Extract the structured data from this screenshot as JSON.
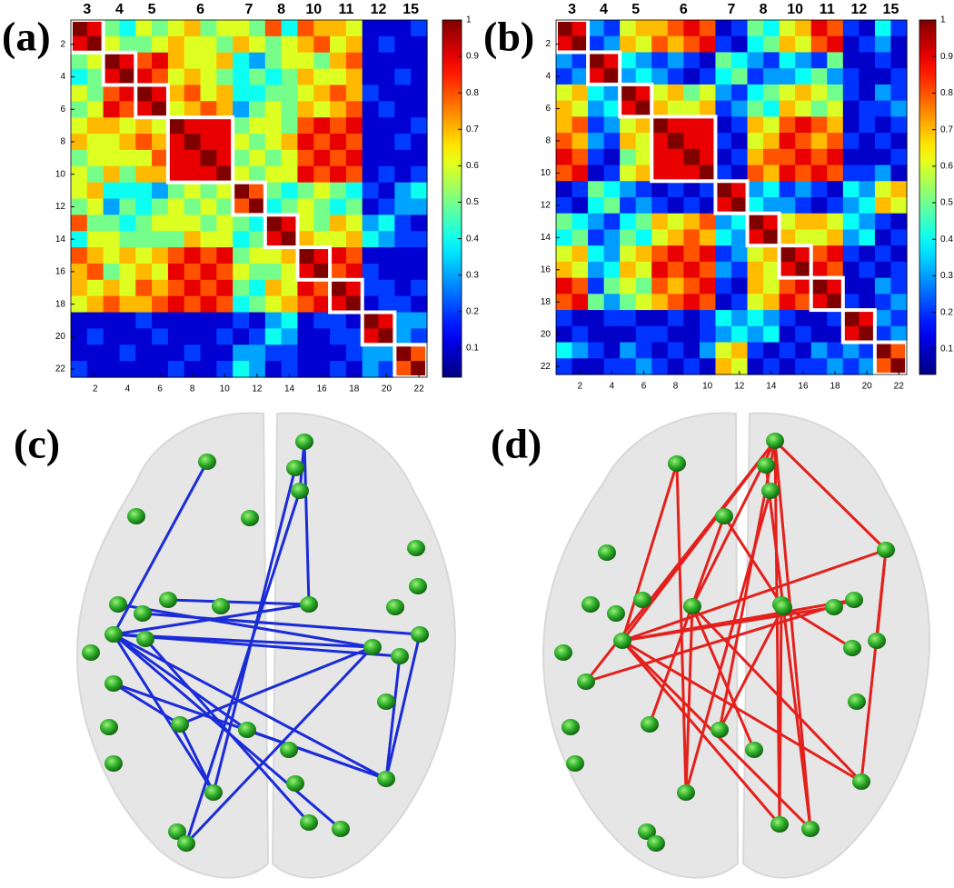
{
  "chart_data": [
    {
      "type": "heatmap",
      "panel_label": "(a)",
      "modules": [
        {
          "label": "3",
          "cells": [
            1,
            2
          ]
        },
        {
          "label": "4",
          "cells": [
            3,
            4
          ]
        },
        {
          "label": "5",
          "cells": [
            5,
            6
          ]
        },
        {
          "label": "6",
          "cells": [
            7,
            10
          ]
        },
        {
          "label": "7",
          "cells": [
            11,
            12
          ]
        },
        {
          "label": "8",
          "cells": [
            13,
            14
          ]
        },
        {
          "label": "10",
          "cells": [
            15,
            16
          ]
        },
        {
          "label": "11",
          "cells": [
            17,
            18
          ]
        },
        {
          "label": "12",
          "cells": [
            19,
            20
          ]
        },
        {
          "label": "15",
          "cells": [
            21,
            22
          ]
        }
      ],
      "xlim": [
        0.5,
        22.5
      ],
      "ylim": [
        0.5,
        22.5
      ],
      "xticks": [
        2,
        4,
        6,
        8,
        10,
        12,
        14,
        16,
        18,
        20,
        22
      ],
      "yticks": [
        2,
        4,
        6,
        8,
        10,
        12,
        14,
        16,
        18,
        20,
        22
      ],
      "colorbar": {
        "lim": [
          0.02,
          1
        ],
        "ticks": [
          0.1,
          0.2,
          0.3,
          0.4,
          0.5,
          0.6,
          0.7,
          0.8,
          0.9,
          1
        ]
      },
      "values": [
        [
          1,
          0.9,
          0.5,
          0.4,
          0.6,
          0.5,
          0.6,
          0.7,
          0.5,
          0.6,
          0.6,
          0.5,
          0.8,
          0.4,
          0.8,
          0.7,
          0.7,
          0.6,
          0.1,
          0.1,
          0.1,
          0.2
        ],
        [
          0.9,
          1,
          0.6,
          0.5,
          0.5,
          0.6,
          0.7,
          0.6,
          0.6,
          0.5,
          0.7,
          0.6,
          0.5,
          0.6,
          0.7,
          0.8,
          0.6,
          0.7,
          0.1,
          0.2,
          0.1,
          0.1
        ],
        [
          0.5,
          0.6,
          1,
          0.9,
          0.8,
          0.9,
          0.7,
          0.6,
          0.6,
          0.7,
          0.4,
          0.3,
          0.5,
          0.6,
          0.6,
          0.5,
          0.7,
          0.8,
          0.1,
          0.1,
          0.1,
          0.1
        ],
        [
          0.4,
          0.5,
          0.9,
          1,
          0.9,
          0.8,
          0.6,
          0.7,
          0.6,
          0.5,
          0.4,
          0.5,
          0.4,
          0.5,
          0.7,
          0.6,
          0.6,
          0.7,
          0.1,
          0.1,
          0.2,
          0.1
        ],
        [
          0.6,
          0.5,
          0.8,
          0.9,
          1,
          0.9,
          0.7,
          0.8,
          0.6,
          0.7,
          0.4,
          0.4,
          0.5,
          0.5,
          0.6,
          0.7,
          0.8,
          0.7,
          0.2,
          0.1,
          0.1,
          0.1
        ],
        [
          0.5,
          0.6,
          0.9,
          0.8,
          0.9,
          1,
          0.6,
          0.7,
          0.8,
          0.7,
          0.3,
          0.5,
          0.6,
          0.5,
          0.7,
          0.6,
          0.7,
          0.8,
          0.1,
          0.2,
          0.1,
          0.1
        ],
        [
          0.6,
          0.7,
          0.7,
          0.6,
          0.7,
          0.6,
          1,
          0.9,
          0.9,
          0.9,
          0.5,
          0.6,
          0.6,
          0.5,
          0.8,
          0.9,
          0.8,
          0.9,
          0.1,
          0.1,
          0.1,
          0.2
        ],
        [
          0.7,
          0.6,
          0.6,
          0.7,
          0.8,
          0.7,
          0.9,
          1,
          0.9,
          0.9,
          0.6,
          0.5,
          0.6,
          0.7,
          0.9,
          0.8,
          0.9,
          0.8,
          0.1,
          0.1,
          0.2,
          0.1
        ],
        [
          0.5,
          0.6,
          0.6,
          0.6,
          0.6,
          0.8,
          0.9,
          0.9,
          1,
          0.9,
          0.5,
          0.6,
          0.5,
          0.6,
          0.8,
          0.9,
          0.8,
          0.9,
          0.1,
          0.1,
          0.1,
          0.1
        ],
        [
          0.6,
          0.5,
          0.7,
          0.5,
          0.7,
          0.7,
          0.9,
          0.9,
          0.9,
          1,
          0.6,
          0.5,
          0.6,
          0.6,
          0.9,
          0.8,
          0.9,
          0.8,
          0.1,
          0.2,
          0.1,
          0.2
        ],
        [
          0.6,
          0.7,
          0.4,
          0.4,
          0.4,
          0.3,
          0.5,
          0.6,
          0.5,
          0.6,
          1,
          0.8,
          0.5,
          0.4,
          0.5,
          0.6,
          0.5,
          0.4,
          0.2,
          0.1,
          0.3,
          0.4
        ],
        [
          0.5,
          0.6,
          0.3,
          0.5,
          0.4,
          0.5,
          0.6,
          0.5,
          0.6,
          0.5,
          0.8,
          1,
          0.4,
          0.5,
          0.6,
          0.5,
          0.4,
          0.5,
          0.1,
          0.2,
          0.3,
          0.3
        ],
        [
          0.8,
          0.5,
          0.5,
          0.4,
          0.5,
          0.6,
          0.6,
          0.6,
          0.5,
          0.6,
          0.5,
          0.4,
          1,
          0.9,
          0.6,
          0.5,
          0.7,
          0.6,
          0.3,
          0.4,
          0.2,
          0.1
        ],
        [
          0.4,
          0.6,
          0.6,
          0.5,
          0.5,
          0.5,
          0.5,
          0.7,
          0.6,
          0.6,
          0.4,
          0.5,
          0.9,
          1,
          0.7,
          0.6,
          0.6,
          0.7,
          0.4,
          0.3,
          0.2,
          0.2
        ],
        [
          0.8,
          0.7,
          0.6,
          0.7,
          0.6,
          0.7,
          0.8,
          0.9,
          0.8,
          0.9,
          0.5,
          0.6,
          0.6,
          0.7,
          1,
          0.9,
          0.9,
          0.8,
          0.1,
          0.1,
          0.1,
          0.1
        ],
        [
          0.7,
          0.8,
          0.5,
          0.6,
          0.7,
          0.6,
          0.9,
          0.8,
          0.9,
          0.8,
          0.6,
          0.5,
          0.5,
          0.6,
          0.9,
          1,
          0.8,
          0.9,
          0.2,
          0.1,
          0.1,
          0.1
        ],
        [
          0.7,
          0.6,
          0.7,
          0.6,
          0.8,
          0.7,
          0.8,
          0.9,
          0.8,
          0.9,
          0.5,
          0.4,
          0.7,
          0.6,
          0.9,
          0.8,
          1,
          0.9,
          0.2,
          0.2,
          0.1,
          0.2
        ],
        [
          0.6,
          0.7,
          0.8,
          0.7,
          0.7,
          0.8,
          0.9,
          0.8,
          0.9,
          0.8,
          0.4,
          0.5,
          0.6,
          0.7,
          0.8,
          0.9,
          0.9,
          1,
          0.1,
          0.2,
          0.2,
          0.1
        ],
        [
          0.1,
          0.1,
          0.1,
          0.1,
          0.2,
          0.1,
          0.1,
          0.1,
          0.1,
          0.1,
          0.2,
          0.1,
          0.3,
          0.4,
          0.1,
          0.2,
          0.2,
          0.1,
          1,
          0.9,
          0.3,
          0.3
        ],
        [
          0.1,
          0.2,
          0.1,
          0.1,
          0.1,
          0.2,
          0.1,
          0.1,
          0.1,
          0.2,
          0.1,
          0.2,
          0.4,
          0.3,
          0.1,
          0.1,
          0.2,
          0.2,
          0.9,
          1,
          0.3,
          0.2
        ],
        [
          0.1,
          0.1,
          0.1,
          0.2,
          0.1,
          0.1,
          0.1,
          0.2,
          0.1,
          0.1,
          0.3,
          0.3,
          0.2,
          0.2,
          0.1,
          0.1,
          0.1,
          0.2,
          0.3,
          0.3,
          1,
          0.8
        ],
        [
          0.2,
          0.1,
          0.1,
          0.1,
          0.1,
          0.1,
          0.2,
          0.1,
          0.1,
          0.2,
          0.4,
          0.3,
          0.1,
          0.2,
          0.1,
          0.1,
          0.2,
          0.1,
          0.3,
          0.2,
          0.8,
          1
        ]
      ]
    },
    {
      "type": "heatmap",
      "panel_label": "(b)",
      "modules": [
        {
          "label": "3",
          "cells": [
            1,
            2
          ]
        },
        {
          "label": "4",
          "cells": [
            3,
            4
          ]
        },
        {
          "label": "5",
          "cells": [
            5,
            6
          ]
        },
        {
          "label": "6",
          "cells": [
            7,
            10
          ]
        },
        {
          "label": "7",
          "cells": [
            11,
            12
          ]
        },
        {
          "label": "8",
          "cells": [
            13,
            14
          ]
        },
        {
          "label": "10",
          "cells": [
            15,
            16
          ]
        },
        {
          "label": "11",
          "cells": [
            17,
            18
          ]
        },
        {
          "label": "12",
          "cells": [
            19,
            20
          ]
        },
        {
          "label": "15",
          "cells": [
            21,
            22
          ]
        }
      ],
      "xlim": [
        0.5,
        22.5
      ],
      "ylim": [
        0.5,
        22.5
      ],
      "xticks": [
        2,
        4,
        6,
        8,
        10,
        12,
        14,
        16,
        18,
        20,
        22
      ],
      "yticks": [
        2,
        4,
        6,
        8,
        10,
        12,
        14,
        16,
        18,
        20,
        22
      ],
      "colorbar": {
        "lim": [
          0.03,
          1
        ],
        "ticks": [
          0.1,
          0.2,
          0.3,
          0.4,
          0.5,
          0.6,
          0.7,
          0.8,
          0.9,
          1
        ]
      },
      "values": [
        [
          1,
          0.9,
          0.3,
          0.2,
          0.6,
          0.7,
          0.7,
          0.8,
          0.9,
          0.8,
          0.1,
          0.2,
          0.5,
          0.4,
          0.6,
          0.7,
          0.9,
          0.8,
          0.2,
          0.1,
          0.4,
          0.2
        ],
        [
          0.9,
          1,
          0.2,
          0.3,
          0.7,
          0.6,
          0.8,
          0.7,
          0.8,
          0.9,
          0.2,
          0.1,
          0.4,
          0.5,
          0.7,
          0.6,
          0.8,
          0.9,
          0.1,
          0.2,
          0.3,
          0.1
        ],
        [
          0.3,
          0.2,
          1,
          0.9,
          0.4,
          0.3,
          0.2,
          0.3,
          0.2,
          0.1,
          0.5,
          0.4,
          0.3,
          0.2,
          0.4,
          0.3,
          0.2,
          0.5,
          0.1,
          0.1,
          0.2,
          0.1
        ],
        [
          0.2,
          0.3,
          0.9,
          1,
          0.3,
          0.4,
          0.3,
          0.2,
          0.1,
          0.2,
          0.4,
          0.5,
          0.2,
          0.3,
          0.3,
          0.4,
          0.5,
          0.3,
          0.2,
          0.1,
          0.1,
          0.2
        ],
        [
          0.6,
          0.7,
          0.4,
          0.3,
          1,
          0.9,
          0.6,
          0.7,
          0.5,
          0.6,
          0.3,
          0.2,
          0.4,
          0.5,
          0.6,
          0.7,
          0.6,
          0.5,
          0.2,
          0.1,
          0.3,
          0.2
        ],
        [
          0.7,
          0.6,
          0.3,
          0.4,
          0.9,
          1,
          0.7,
          0.6,
          0.6,
          0.7,
          0.2,
          0.3,
          0.5,
          0.4,
          0.7,
          0.6,
          0.5,
          0.6,
          0.1,
          0.2,
          0.2,
          0.3
        ],
        [
          0.7,
          0.8,
          0.2,
          0.3,
          0.6,
          0.7,
          1,
          0.9,
          0.9,
          0.9,
          0.1,
          0.2,
          0.7,
          0.6,
          0.8,
          0.9,
          0.8,
          0.7,
          0.1,
          0.2,
          0.1,
          0.2
        ],
        [
          0.8,
          0.7,
          0.3,
          0.2,
          0.7,
          0.6,
          0.9,
          1,
          0.9,
          0.9,
          0.2,
          0.1,
          0.6,
          0.7,
          0.9,
          0.8,
          0.7,
          0.8,
          0.2,
          0.1,
          0.2,
          0.1
        ],
        [
          0.9,
          0.8,
          0.2,
          0.1,
          0.5,
          0.6,
          0.9,
          0.9,
          1,
          0.9,
          0.1,
          0.2,
          0.7,
          0.8,
          0.8,
          0.9,
          0.8,
          0.9,
          0.1,
          0.1,
          0.1,
          0.2
        ],
        [
          0.8,
          0.9,
          0.1,
          0.2,
          0.6,
          0.7,
          0.9,
          0.9,
          0.9,
          1,
          0.2,
          0.1,
          0.8,
          0.7,
          0.9,
          0.8,
          0.9,
          0.8,
          0.2,
          0.2,
          0.3,
          0.1
        ],
        [
          0.1,
          0.2,
          0.5,
          0.4,
          0.3,
          0.2,
          0.1,
          0.2,
          0.1,
          0.2,
          1,
          0.9,
          0.3,
          0.4,
          0.2,
          0.3,
          0.2,
          0.1,
          0.4,
          0.3,
          0.6,
          0.7
        ],
        [
          0.2,
          0.1,
          0.4,
          0.5,
          0.2,
          0.3,
          0.2,
          0.1,
          0.2,
          0.1,
          0.9,
          1,
          0.4,
          0.3,
          0.3,
          0.2,
          0.1,
          0.2,
          0.3,
          0.4,
          0.7,
          0.6
        ],
        [
          0.5,
          0.4,
          0.3,
          0.2,
          0.4,
          0.5,
          0.7,
          0.6,
          0.7,
          0.8,
          0.3,
          0.4,
          1,
          0.9,
          0.6,
          0.7,
          0.7,
          0.6,
          0.4,
          0.3,
          0.2,
          0.1
        ],
        [
          0.4,
          0.5,
          0.2,
          0.3,
          0.5,
          0.4,
          0.6,
          0.7,
          0.8,
          0.7,
          0.4,
          0.3,
          0.9,
          1,
          0.7,
          0.6,
          0.6,
          0.7,
          0.3,
          0.4,
          0.1,
          0.2
        ],
        [
          0.6,
          0.7,
          0.4,
          0.3,
          0.6,
          0.7,
          0.8,
          0.9,
          0.8,
          0.9,
          0.2,
          0.3,
          0.6,
          0.7,
          1,
          0.9,
          0.8,
          0.9,
          0.2,
          0.1,
          0.2,
          0.1
        ],
        [
          0.7,
          0.6,
          0.3,
          0.4,
          0.7,
          0.6,
          0.9,
          0.8,
          0.9,
          0.8,
          0.3,
          0.2,
          0.7,
          0.6,
          0.9,
          1,
          0.9,
          0.8,
          0.1,
          0.2,
          0.1,
          0.2
        ],
        [
          0.9,
          0.8,
          0.2,
          0.5,
          0.6,
          0.5,
          0.8,
          0.7,
          0.8,
          0.9,
          0.2,
          0.1,
          0.7,
          0.6,
          0.8,
          0.9,
          1,
          0.9,
          0.1,
          0.1,
          0.3,
          0.2
        ],
        [
          0.8,
          0.9,
          0.5,
          0.3,
          0.5,
          0.6,
          0.7,
          0.8,
          0.9,
          0.8,
          0.1,
          0.2,
          0.6,
          0.7,
          0.9,
          0.8,
          0.9,
          1,
          0.2,
          0.1,
          0.2,
          0.3
        ],
        [
          0.2,
          0.1,
          0.1,
          0.2,
          0.2,
          0.1,
          0.1,
          0.2,
          0.1,
          0.2,
          0.4,
          0.3,
          0.4,
          0.3,
          0.2,
          0.1,
          0.1,
          0.2,
          1,
          0.9,
          0.3,
          0.2
        ],
        [
          0.1,
          0.2,
          0.1,
          0.1,
          0.1,
          0.2,
          0.2,
          0.1,
          0.1,
          0.2,
          0.3,
          0.4,
          0.3,
          0.4,
          0.1,
          0.2,
          0.1,
          0.1,
          0.9,
          1,
          0.2,
          0.3
        ],
        [
          0.4,
          0.3,
          0.2,
          0.1,
          0.3,
          0.2,
          0.1,
          0.2,
          0.1,
          0.3,
          0.6,
          0.7,
          0.2,
          0.1,
          0.2,
          0.1,
          0.3,
          0.2,
          0.3,
          0.2,
          1,
          0.8
        ],
        [
          0.2,
          0.1,
          0.1,
          0.2,
          0.2,
          0.3,
          0.2,
          0.1,
          0.2,
          0.1,
          0.7,
          0.6,
          0.1,
          0.2,
          0.1,
          0.2,
          0.2,
          0.3,
          0.2,
          0.3,
          0.8,
          1
        ]
      ]
    }
  ],
  "networks": [
    {
      "label": "(c)",
      "edge_color": "#1a2bd8"
    },
    {
      "label": "(d)",
      "edge_color": "#e3201c"
    }
  ]
}
